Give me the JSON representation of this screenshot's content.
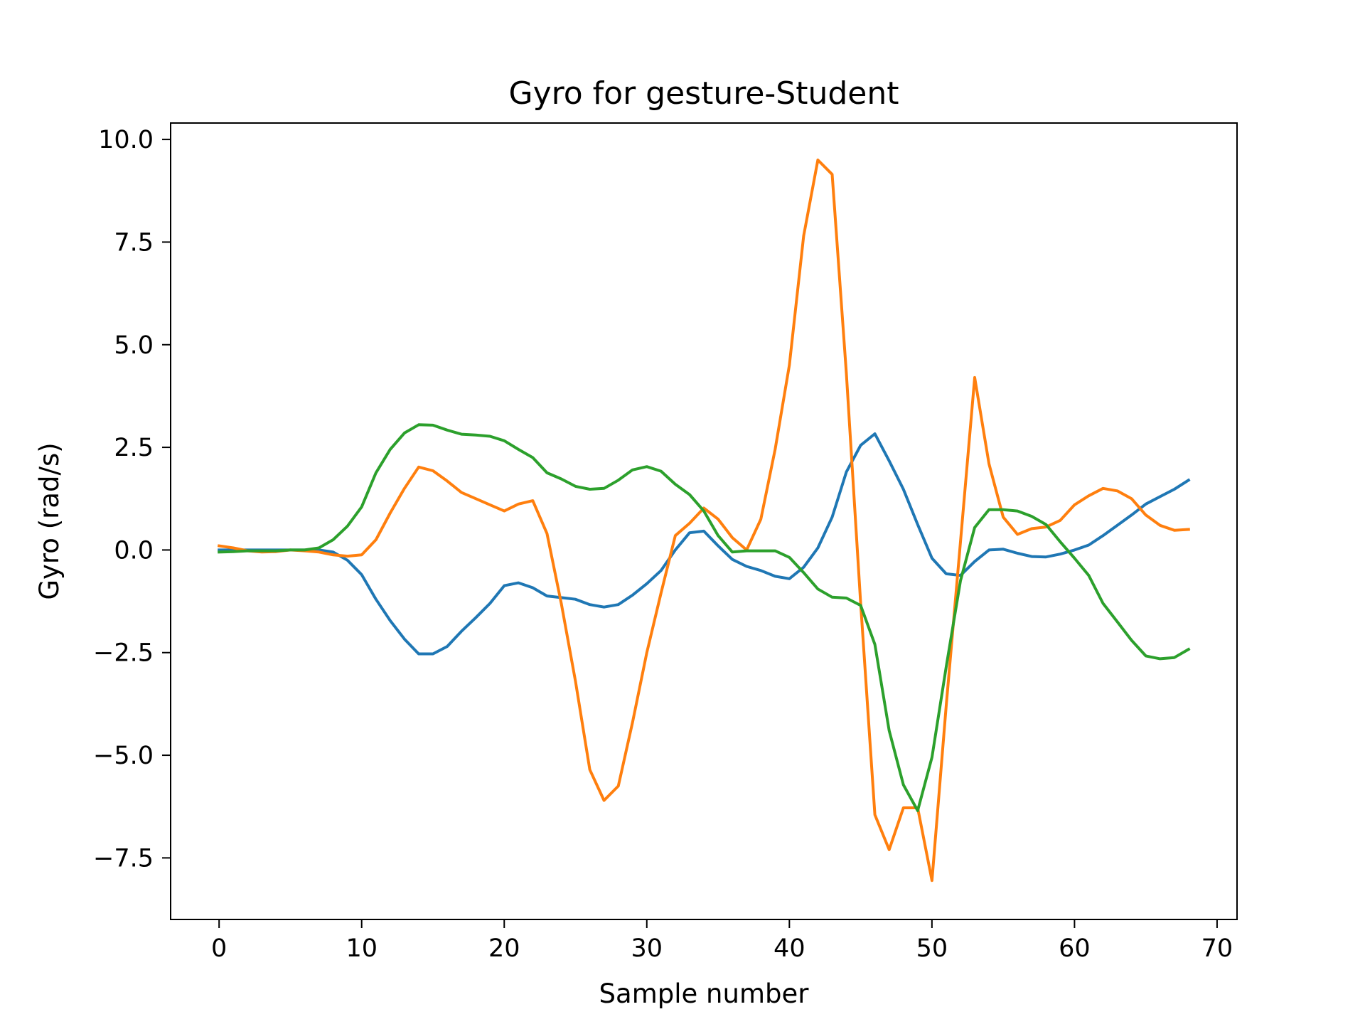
{
  "chart_data": {
    "type": "line",
    "title": "Gyro for gesture-Student",
    "xlabel": "Sample number",
    "ylabel": "Gyro  (rad/s)",
    "xlim": [
      -3.4,
      71.4
    ],
    "ylim": [
      -9.0,
      10.4
    ],
    "xticks": [
      0,
      10,
      20,
      30,
      40,
      50,
      60,
      70
    ],
    "yticks": [
      -7.5,
      -5.0,
      -2.5,
      0.0,
      2.5,
      5.0,
      7.5,
      10.0
    ],
    "xtick_labels": [
      "0",
      "10",
      "20",
      "30",
      "40",
      "50",
      "60",
      "70"
    ],
    "ytick_labels": [
      "−7.5",
      "−5.0",
      "−2.5",
      "0.0",
      "2.5",
      "5.0",
      "7.5",
      "10.0"
    ],
    "grid": false,
    "series": [
      {
        "color": "#1f77b4",
        "values": [
          0.0,
          0.0,
          0.0,
          0.0,
          0.0,
          0.0,
          0.0,
          0.0,
          -0.05,
          -0.25,
          -0.6,
          -1.2,
          -1.72,
          -2.17,
          -2.53,
          -2.53,
          -2.35,
          -1.98,
          -1.65,
          -1.3,
          -0.87,
          -0.8,
          -0.92,
          -1.12,
          -1.16,
          -1.2,
          -1.33,
          -1.39,
          -1.33,
          -1.1,
          -0.82,
          -0.5,
          0.0,
          0.42,
          0.46,
          0.1,
          -0.23,
          -0.4,
          -0.5,
          -0.64,
          -0.7,
          -0.42,
          0.05,
          0.8,
          1.9,
          2.55,
          2.83,
          2.17,
          1.48,
          0.62,
          -0.2,
          -0.58,
          -0.62,
          -0.28,
          0.0,
          0.02,
          -0.08,
          -0.16,
          -0.17,
          -0.1,
          0.0,
          0.12,
          0.35,
          0.6,
          0.85,
          1.12,
          1.3,
          1.48,
          1.7
        ]
      },
      {
        "color": "#ff7f0e",
        "values": [
          0.1,
          0.05,
          -0.02,
          -0.05,
          -0.04,
          0.0,
          -0.02,
          -0.05,
          -0.12,
          -0.15,
          -0.12,
          0.25,
          0.9,
          1.5,
          2.02,
          1.93,
          1.68,
          1.4,
          1.25,
          1.1,
          0.95,
          1.12,
          1.2,
          0.4,
          -1.3,
          -3.2,
          -5.35,
          -6.1,
          -5.75,
          -4.2,
          -2.5,
          -1.05,
          0.35,
          0.65,
          1.02,
          0.75,
          0.3,
          0.0,
          0.75,
          2.45,
          4.5,
          7.65,
          9.5,
          9.15,
          4.3,
          -1.3,
          -6.45,
          -7.3,
          -6.28,
          -6.28,
          -8.05,
          -3.8,
          0.2,
          4.2,
          2.1,
          0.8,
          0.38,
          0.52,
          0.56,
          0.72,
          1.1,
          1.32,
          1.5,
          1.44,
          1.25,
          0.85,
          0.6,
          0.48,
          0.5
        ]
      },
      {
        "color": "#2ca02c",
        "values": [
          -0.05,
          -0.04,
          -0.02,
          -0.02,
          -0.02,
          0.0,
          0.0,
          0.05,
          0.25,
          0.58,
          1.05,
          1.88,
          2.45,
          2.85,
          3.05,
          3.04,
          2.92,
          2.82,
          2.8,
          2.77,
          2.66,
          2.45,
          2.25,
          1.88,
          1.73,
          1.55,
          1.48,
          1.5,
          1.7,
          1.95,
          2.03,
          1.92,
          1.6,
          1.35,
          0.95,
          0.35,
          -0.05,
          -0.02,
          -0.02,
          -0.02,
          -0.18,
          -0.55,
          -0.95,
          -1.15,
          -1.17,
          -1.35,
          -2.3,
          -4.4,
          -5.72,
          -6.35,
          -5.05,
          -2.85,
          -0.75,
          0.55,
          0.98,
          0.98,
          0.95,
          0.82,
          0.62,
          0.2,
          -0.2,
          -0.62,
          -1.3,
          -1.75,
          -2.2,
          -2.58,
          -2.65,
          -2.62,
          -2.42
        ]
      }
    ]
  }
}
